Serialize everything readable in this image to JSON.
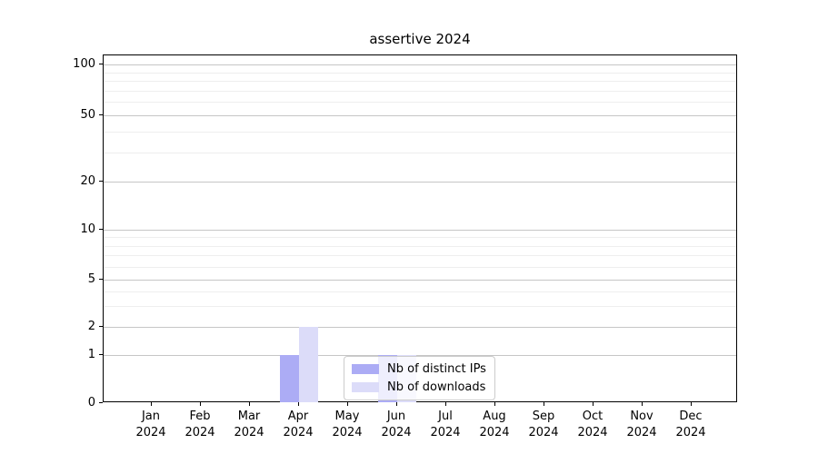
{
  "chart_data": {
    "type": "bar",
    "title": "assertive 2024",
    "xlabel": "",
    "ylabel": "",
    "scale": "symlog",
    "grid": true,
    "legend_position": "lower-center",
    "ylim": [
      0,
      100
    ],
    "y_ticks": [
      0,
      1,
      2,
      5,
      10,
      20,
      50,
      100
    ],
    "y_minor_gridlines": [
      3,
      4,
      6,
      7,
      8,
      9,
      30,
      40,
      60,
      70,
      80,
      90
    ],
    "x_tick_months": [
      "Jan",
      "Feb",
      "Mar",
      "Apr",
      "May",
      "Jun",
      "Jul",
      "Aug",
      "Sep",
      "Oct",
      "Nov",
      "Dec"
    ],
    "x_tick_year": "2024",
    "categories": [
      "Jan 2024",
      "Feb 2024",
      "Mar 2024",
      "Apr 2024",
      "May 2024",
      "Jun 2024",
      "Jul 2024",
      "Aug 2024",
      "Sep 2024",
      "Oct 2024",
      "Nov 2024",
      "Dec 2024"
    ],
    "series": [
      {
        "name": "Nb of distinct IPs",
        "color": "#acacf5",
        "values": [
          0,
          0,
          0,
          1,
          0,
          1,
          0,
          0,
          0,
          0,
          0,
          0
        ]
      },
      {
        "name": "Nb of downloads",
        "color": "#dcdcf9",
        "values": [
          0,
          0,
          0,
          2,
          0,
          1,
          0,
          0,
          0,
          0,
          0,
          0
        ]
      }
    ]
  },
  "colors": {
    "grid_major": "#c6c6c6",
    "grid_minor": "#eeeeee",
    "axis": "#000000",
    "legend_border": "#cccccc"
  }
}
